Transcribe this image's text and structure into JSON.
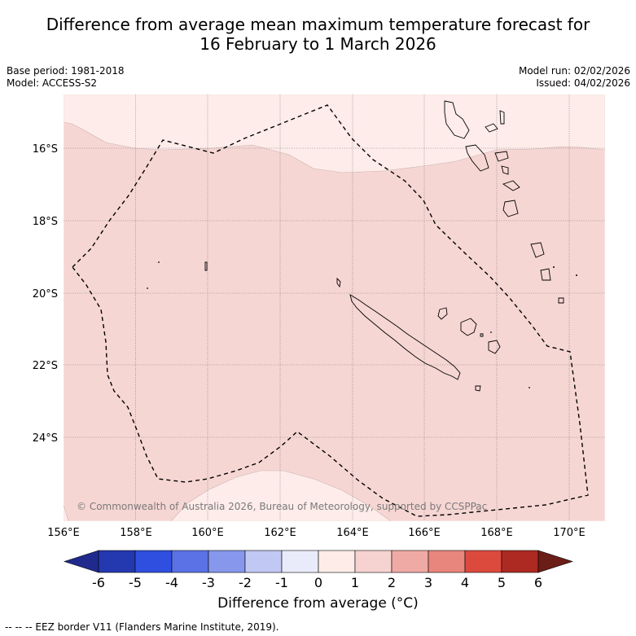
{
  "title": {
    "line1": "Difference from average mean maximum temperature forecast for",
    "line2": "16 February to 1 March 2026"
  },
  "meta": {
    "base_period": "Base period: 1981-2018",
    "model": "Model: ACCESS-S2",
    "model_run": "Model run: 02/02/2026",
    "issued": "Issued: 04/02/2026"
  },
  "map": {
    "longitude_labels": [
      "156°E",
      "158°E",
      "160°E",
      "162°E",
      "164°E",
      "166°E",
      "168°E",
      "170°E"
    ],
    "latitude_labels": [
      "16°S",
      "18°S",
      "20°S",
      "22°S",
      "24°S"
    ],
    "copyright": "© Commonwealth of Australia 2026, Bureau of Meteorology, supported by CCSPPac",
    "colors": {
      "anomaly_0_1": "#fdecea",
      "anomaly_1_2": "#f6d6d3",
      "land_outline": "#000000",
      "eez_line": "#000000",
      "grid": "#666666"
    }
  },
  "colorbar": {
    "ticks": [
      "-6",
      "-5",
      "-4",
      "-3",
      "-2",
      "-1",
      "0",
      "1",
      "2",
      "3",
      "4",
      "5",
      "6"
    ],
    "colors": [
      "#1f2a8c",
      "#2438b0",
      "#2f4fe0",
      "#5a72e6",
      "#8797ec",
      "#c2c8f4",
      "#e9ebfa",
      "#fdece8",
      "#f6d3d0",
      "#f0aaa5",
      "#e8857c",
      "#dc4a3e",
      "#ad2a22",
      "#6b1d18"
    ],
    "label": "Difference from average (°C)"
  },
  "footer": {
    "eez_note": "--  --  -- EEZ border V11 (Flanders Marine Institute, 2019)."
  }
}
